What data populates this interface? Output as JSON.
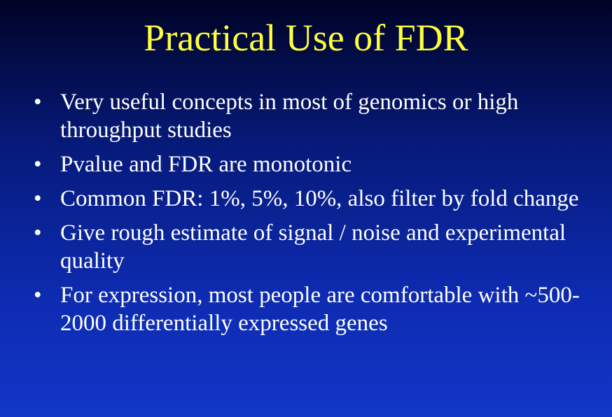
{
  "slide": {
    "title": "Practical Use of FDR",
    "bullet_symbol": "•",
    "bullets": [
      "Very useful concepts in most of genomics or high throughput studies",
      "Pvalue and FDR are monotonic",
      "Common FDR: 1%, 5%, 10%, also filter by fold change",
      "Give rough estimate of signal / noise and experimental quality",
      "For expression, most people are comfortable with ~500-2000 differentially expressed genes"
    ]
  },
  "colors": {
    "title": "#ffff3a",
    "text": "#ffffff",
    "background_top": "#000326",
    "background_bottom": "#1236c8"
  }
}
